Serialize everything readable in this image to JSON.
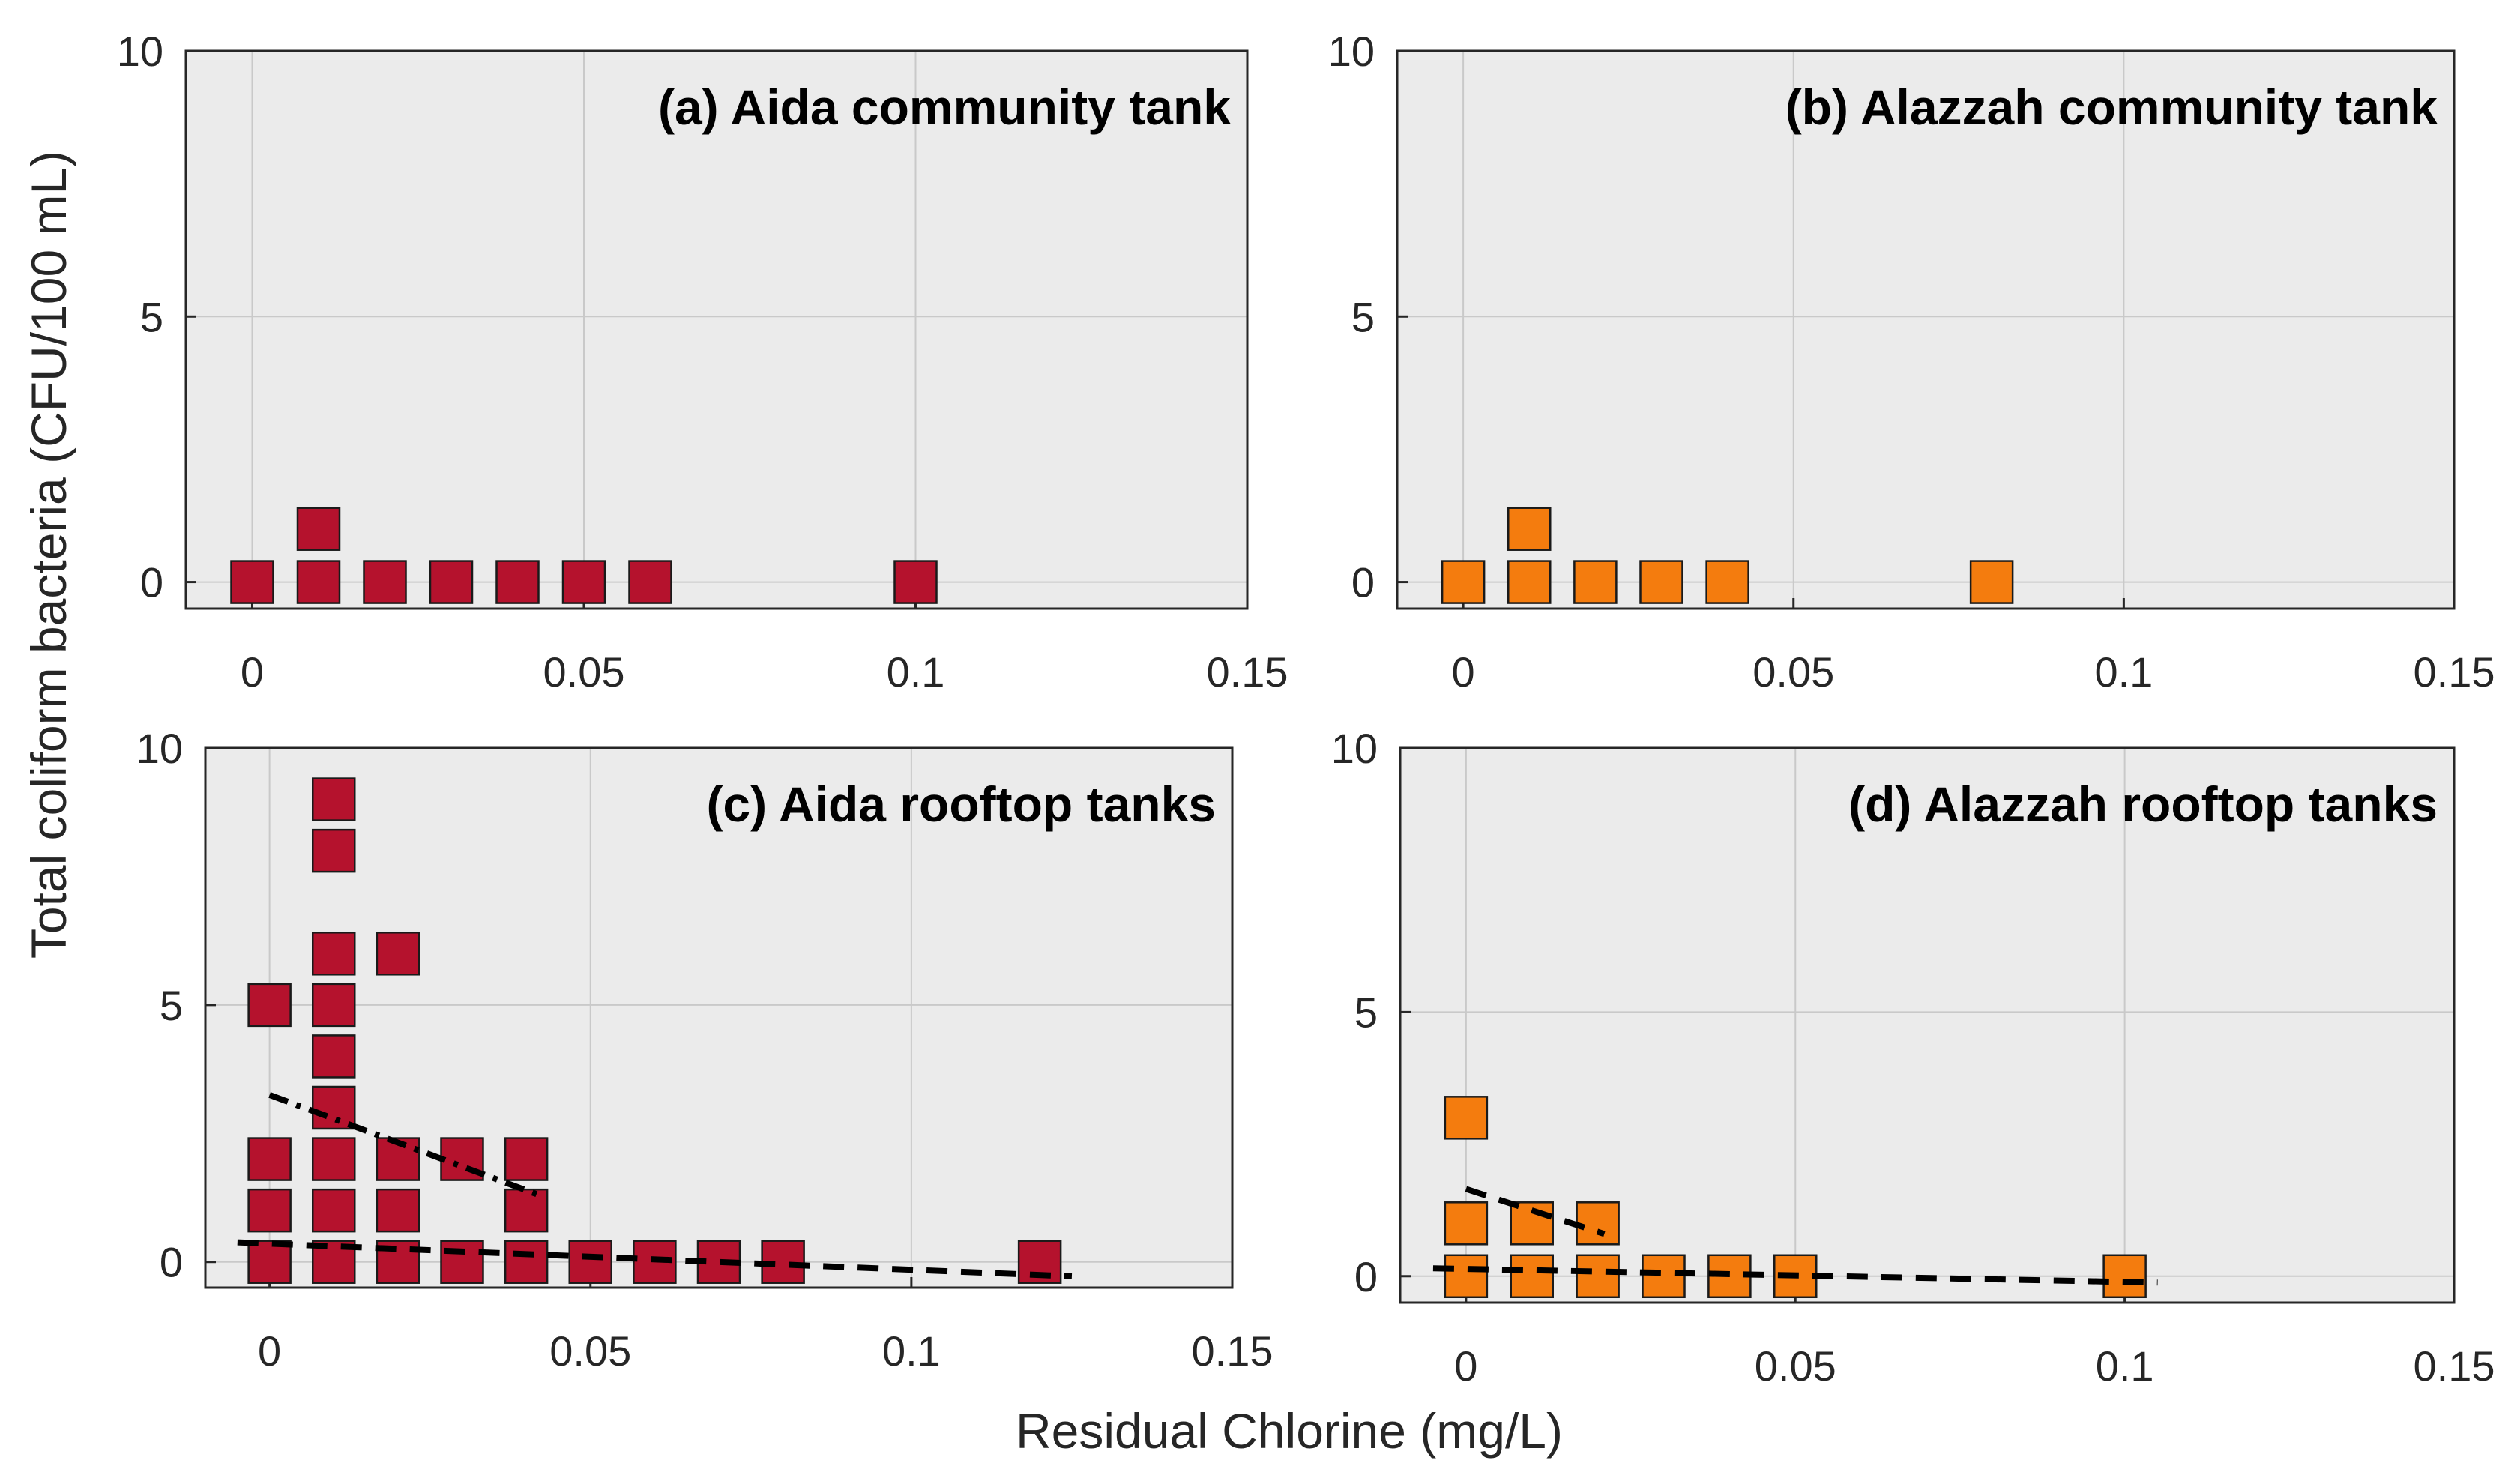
{
  "figure": {
    "ylabel": "Total coliform bacteria (CFU/100 mL)",
    "xlabel": "Residual Chlorine (mg/L)"
  },
  "chart_data": [
    {
      "type": "scatter",
      "title": "(a) Aida community tank",
      "xlim": [
        -0.01,
        0.15
      ],
      "ylim": [
        -0.5,
        10
      ],
      "xticks": [
        0,
        0.05,
        0.1,
        0.15
      ],
      "xtick_labels": [
        "0",
        "0.05",
        "0.1",
        "0.15"
      ],
      "yticks": [
        0,
        5,
        10
      ],
      "ytick_labels": [
        "0",
        "5",
        "10"
      ],
      "grid": true,
      "marker": "square",
      "color": "#b5122d",
      "points": [
        [
          0,
          0
        ],
        [
          0.01,
          0
        ],
        [
          0.01,
          1
        ],
        [
          0.02,
          0
        ],
        [
          0.03,
          0
        ],
        [
          0.04,
          0
        ],
        [
          0.05,
          0
        ],
        [
          0.06,
          0
        ],
        [
          0.1,
          0
        ]
      ],
      "trend_lines": []
    },
    {
      "type": "scatter",
      "title": "(b) Alazzah community tank",
      "xlim": [
        -0.01,
        0.15
      ],
      "ylim": [
        -0.5,
        10
      ],
      "xticks": [
        0,
        0.05,
        0.1,
        0.15
      ],
      "xtick_labels": [
        "0",
        "0.05",
        "0.1",
        "0.15"
      ],
      "yticks": [
        0,
        5,
        10
      ],
      "ytick_labels": [
        "0",
        "5",
        "10"
      ],
      "grid": true,
      "marker": "square",
      "color": "#f47c0e",
      "points": [
        [
          0,
          0
        ],
        [
          0.01,
          0
        ],
        [
          0.01,
          1
        ],
        [
          0.02,
          0
        ],
        [
          0.03,
          0
        ],
        [
          0.04,
          0
        ],
        [
          0.08,
          0
        ]
      ],
      "trend_lines": []
    },
    {
      "type": "scatter",
      "title": "(c) Aida rooftop tanks",
      "xlim": [
        -0.01,
        0.15
      ],
      "ylim": [
        -0.5,
        10
      ],
      "xticks": [
        0,
        0.05,
        0.1,
        0.15
      ],
      "xtick_labels": [
        "0",
        "0.05",
        "0.1",
        "0.15"
      ],
      "yticks": [
        0,
        5,
        10
      ],
      "ytick_labels": [
        "0",
        "5",
        "10"
      ],
      "grid": true,
      "marker": "square",
      "color": "#b5122d",
      "points": [
        [
          0,
          0
        ],
        [
          0,
          1
        ],
        [
          0,
          2
        ],
        [
          0,
          5
        ],
        [
          0.01,
          0
        ],
        [
          0.01,
          1
        ],
        [
          0.01,
          2
        ],
        [
          0.01,
          3
        ],
        [
          0.01,
          4
        ],
        [
          0.01,
          5
        ],
        [
          0.01,
          6
        ],
        [
          0.01,
          8
        ],
        [
          0.01,
          9
        ],
        [
          0.02,
          0
        ],
        [
          0.02,
          1
        ],
        [
          0.02,
          2
        ],
        [
          0.02,
          6
        ],
        [
          0.03,
          0
        ],
        [
          0.03,
          2
        ],
        [
          0.04,
          0
        ],
        [
          0.04,
          1
        ],
        [
          0.04,
          2
        ],
        [
          0.05,
          0
        ],
        [
          0.06,
          0
        ],
        [
          0.07,
          0
        ],
        [
          0.08,
          0
        ],
        [
          0.12,
          0
        ]
      ],
      "trend_lines": [
        {
          "style": "dash-dot",
          "x": [
            0,
            0.042
          ],
          "y": [
            3.25,
            1.3
          ]
        },
        {
          "style": "dashed",
          "x": [
            -0.005,
            0.125
          ],
          "y": [
            0.38,
            -0.28
          ]
        }
      ]
    },
    {
      "type": "scatter",
      "title": "(d) Alazzah rooftop tanks",
      "xlim": [
        -0.01,
        0.15
      ],
      "ylim": [
        -0.5,
        10
      ],
      "xticks": [
        0,
        0.05,
        0.1,
        0.15
      ],
      "xtick_labels": [
        "0",
        "0.05",
        "0.1",
        "0.15"
      ],
      "yticks": [
        0,
        5,
        10
      ],
      "ytick_labels": [
        "0",
        "5",
        "10"
      ],
      "grid": true,
      "marker": "square",
      "color": "#f47c0e",
      "points": [
        [
          0,
          0
        ],
        [
          0,
          1
        ],
        [
          0,
          3
        ],
        [
          0.01,
          0
        ],
        [
          0.01,
          1
        ],
        [
          0.02,
          0
        ],
        [
          0.02,
          1
        ],
        [
          0.03,
          0
        ],
        [
          0.04,
          0
        ],
        [
          0.05,
          0
        ],
        [
          0.1,
          0
        ]
      ],
      "trend_lines": [
        {
          "style": "dashed",
          "x": [
            0,
            0.021
          ],
          "y": [
            1.65,
            0.8
          ]
        },
        {
          "style": "dashed",
          "x": [
            -0.005,
            0.105
          ],
          "y": [
            0.15,
            -0.12
          ]
        }
      ]
    }
  ]
}
